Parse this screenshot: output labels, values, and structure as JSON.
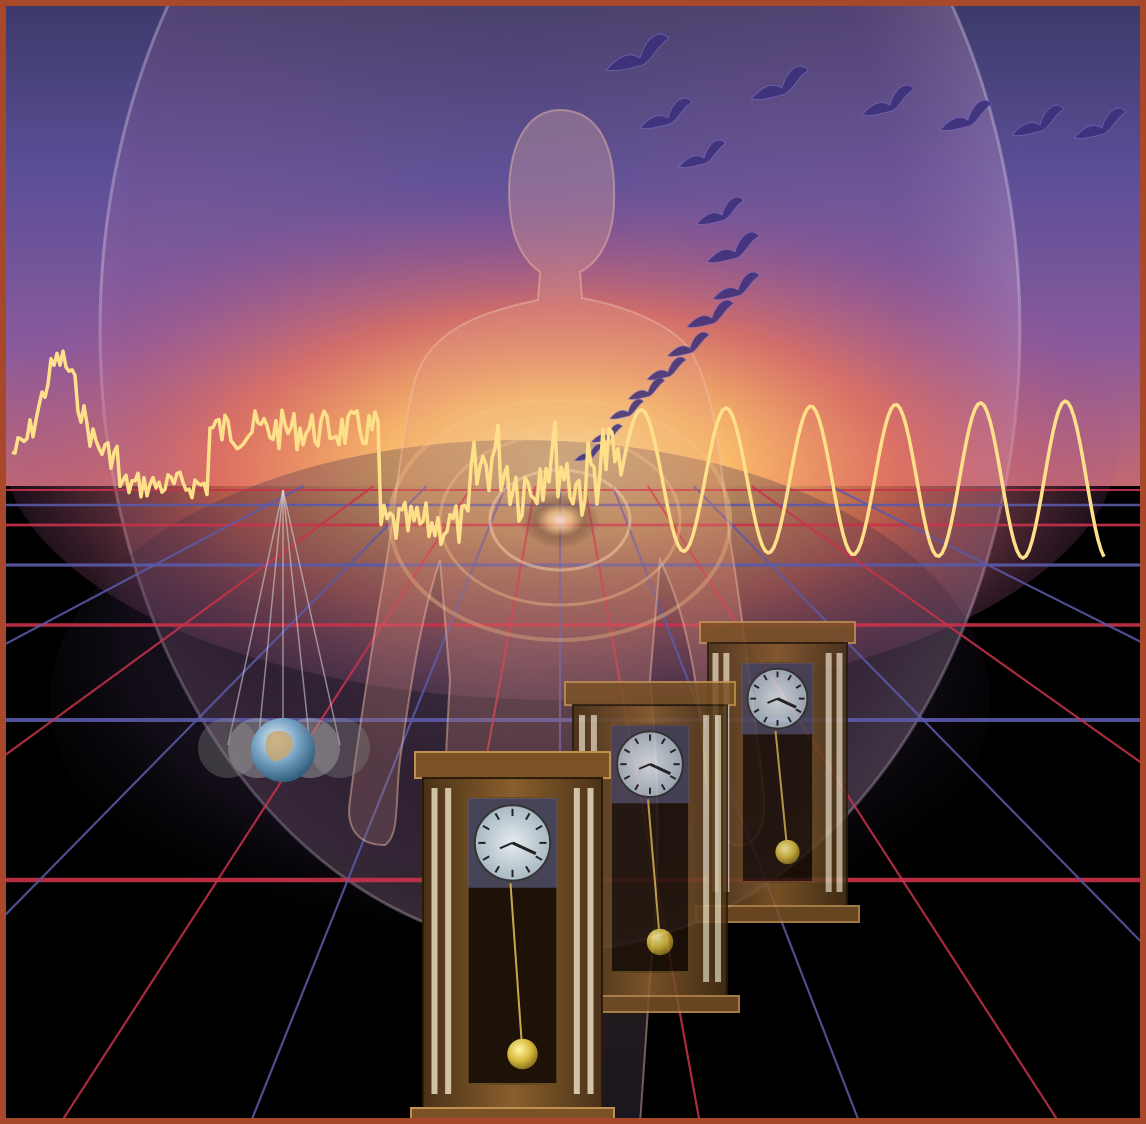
{
  "image": {
    "kind": "digital illustration",
    "caption": "",
    "palette": {
      "frame": "#a8482a",
      "sky_top": "#4a3f8c",
      "sky_mid": "#7c5aa0",
      "sky_glow": "#e8735a",
      "horizon_glow": "#ffd36b",
      "floor": "#000000",
      "grid_red": "#c8324a",
      "grid_blue": "#5a5aa8",
      "waveform": "#ffe08a",
      "clock_wood": "#7a5226",
      "clock_face": "#cdd6dc",
      "pendulum_bob": "#d6b93a",
      "bird": "#3a2f7a"
    },
    "elements": [
      "perspective-grid-floor",
      "yellow-waveform",
      "translucent-human-figure",
      "migrating-birds",
      "earth-pendulum",
      "grandfather-clock-front",
      "grandfather-clock-middle",
      "grandfather-clock-back"
    ]
  }
}
